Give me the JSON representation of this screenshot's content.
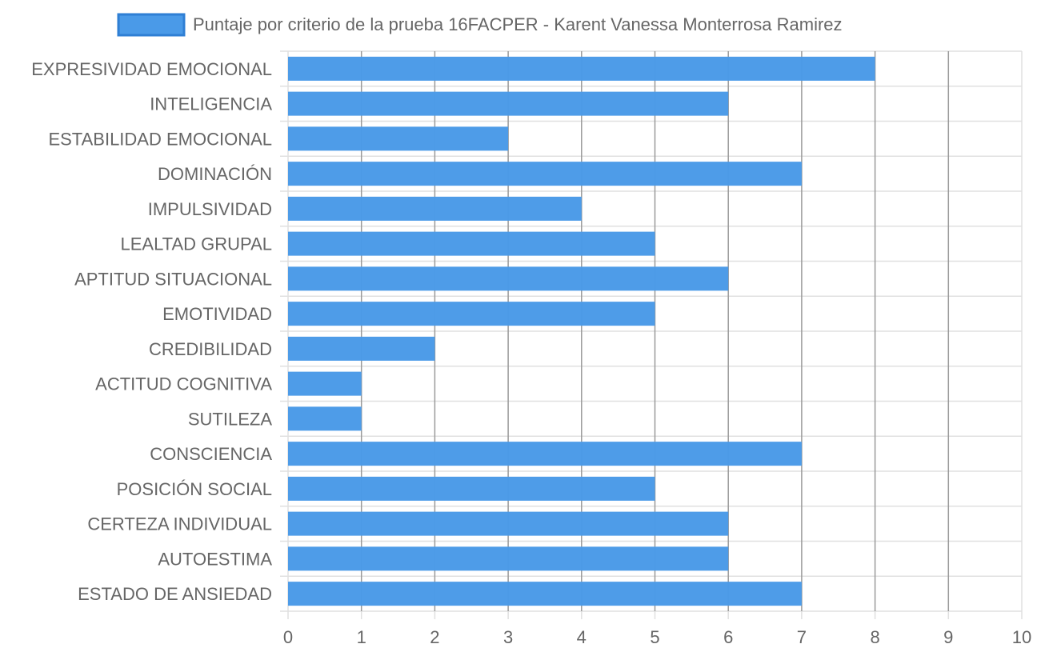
{
  "chart_data": {
    "type": "bar",
    "orientation": "horizontal",
    "title": "",
    "xlabel": "",
    "ylabel": "",
    "xlim": [
      0,
      10
    ],
    "x_ticks": [
      "0",
      "1",
      "2",
      "3",
      "4",
      "5",
      "6",
      "7",
      "8",
      "9",
      "10"
    ],
    "grid": true,
    "legend_position": "top",
    "categories": [
      "EXPRESIVIDAD EMOCIONAL",
      "INTELIGENCIA",
      "ESTABILIDAD EMOCIONAL",
      "DOMINACIÓN",
      "IMPULSIVIDAD",
      "LEALTAD GRUPAL",
      "APTITUD SITUACIONAL",
      "EMOTIVIDAD",
      "CREDIBILIDAD",
      "ACTITUD COGNITIVA",
      "SUTILEZA",
      "CONSCIENCIA",
      "POSICIÓN SOCIAL",
      "CERTEZA INDIVIDUAL",
      "AUTOESTIMA",
      "ESTADO DE ANSIEDAD"
    ],
    "series": [
      {
        "name": "Puntaje por criterio de la prueba 16FACPER - Karent Vanessa Monterrosa Ramirez",
        "values": [
          8,
          6,
          3,
          7,
          4,
          5,
          6,
          5,
          2,
          1,
          1,
          7,
          5,
          6,
          6,
          7
        ],
        "color": "#4a9ae8",
        "border_color": "#2f7fd4"
      }
    ],
    "colors": {
      "grid": "#e0e0e0",
      "grid_major": "#9a9a9a",
      "axis_text": "#666666",
      "legend_text": "#666666"
    }
  }
}
